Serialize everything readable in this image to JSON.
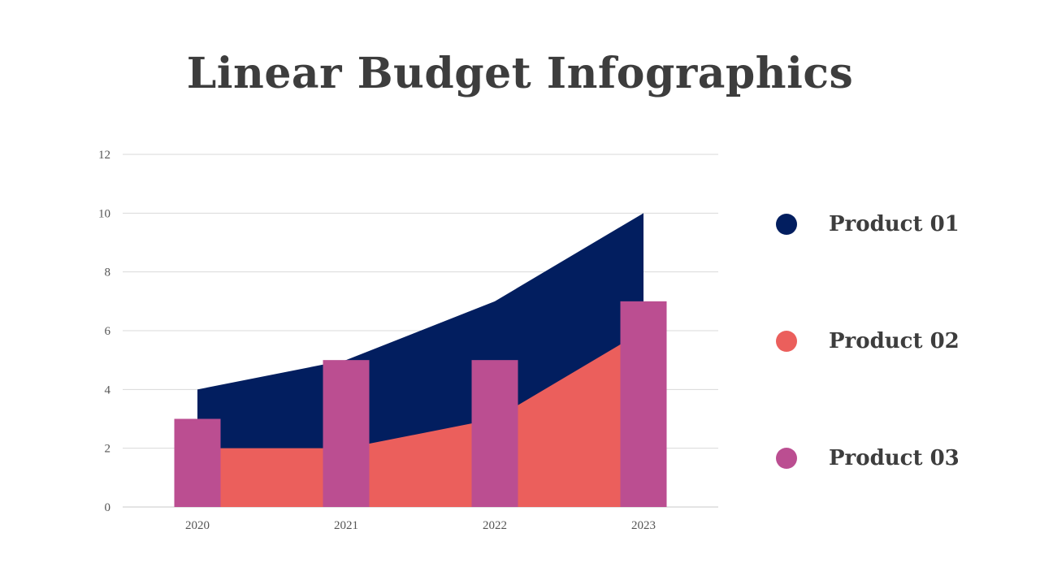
{
  "title": "Linear Budget Infographics",
  "chart_data": {
    "type": "area+bar",
    "categories": [
      "2020",
      "2021",
      "2022",
      "2023"
    ],
    "ylim": [
      0,
      12
    ],
    "yticks": [
      0,
      2,
      4,
      6,
      8,
      10,
      12
    ],
    "grid": true,
    "series": [
      {
        "name": "Product 01",
        "kind": "area",
        "color": "#021E5F",
        "values": [
          4,
          5,
          7,
          10
        ]
      },
      {
        "name": "Product 02",
        "kind": "area",
        "color": "#EB5F5C",
        "values": [
          2,
          2,
          3,
          6
        ]
      },
      {
        "name": "Product 03",
        "kind": "bar",
        "color": "#BB4E91",
        "values": [
          3,
          5,
          5,
          7
        ]
      }
    ],
    "legend_position": "right"
  },
  "legend": [
    {
      "label": "Product 01",
      "color": "#021E5F"
    },
    {
      "label": "Product 02",
      "color": "#EB5F5C"
    },
    {
      "label": "Product 03",
      "color": "#BB4E91"
    }
  ]
}
